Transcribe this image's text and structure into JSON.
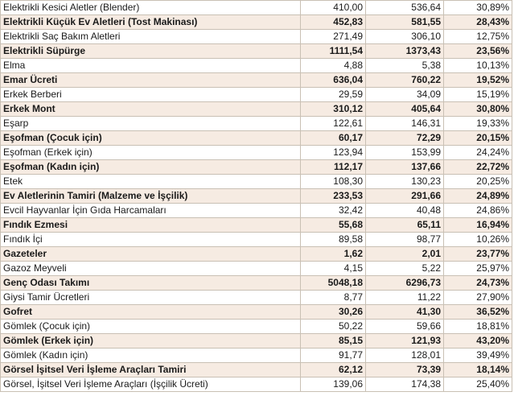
{
  "rows": [
    {
      "name": "Elektrikli Kesici Aletler (Blender)",
      "v1": "410,00",
      "v2": "536,64",
      "pct": "30,89%",
      "bold": false
    },
    {
      "name": "Elektrikli Küçük Ev Aletleri (Tost Makinası)",
      "v1": "452,83",
      "v2": "581,55",
      "pct": "28,43%",
      "bold": true
    },
    {
      "name": "Elektrikli Saç Bakım Aletleri",
      "v1": "271,49",
      "v2": "306,10",
      "pct": "12,75%",
      "bold": false
    },
    {
      "name": "Elektrikli Süpürge",
      "v1": "1111,54",
      "v2": "1373,43",
      "pct": "23,56%",
      "bold": true
    },
    {
      "name": "Elma",
      "v1": "4,88",
      "v2": "5,38",
      "pct": "10,13%",
      "bold": false
    },
    {
      "name": "Emar Ücreti",
      "v1": "636,04",
      "v2": "760,22",
      "pct": "19,52%",
      "bold": true
    },
    {
      "name": "Erkek Berberi",
      "v1": "29,59",
      "v2": "34,09",
      "pct": "15,19%",
      "bold": false
    },
    {
      "name": "Erkek Mont",
      "v1": "310,12",
      "v2": "405,64",
      "pct": "30,80%",
      "bold": true
    },
    {
      "name": "Eşarp",
      "v1": "122,61",
      "v2": "146,31",
      "pct": "19,33%",
      "bold": false
    },
    {
      "name": "Eşofman (Çocuk için)",
      "v1": "60,17",
      "v2": "72,29",
      "pct": "20,15%",
      "bold": true
    },
    {
      "name": "Eşofman (Erkek için)",
      "v1": "123,94",
      "v2": "153,99",
      "pct": "24,24%",
      "bold": false
    },
    {
      "name": "Eşofman (Kadın için)",
      "v1": "112,17",
      "v2": "137,66",
      "pct": "22,72%",
      "bold": true
    },
    {
      "name": "Etek",
      "v1": "108,30",
      "v2": "130,23",
      "pct": "20,25%",
      "bold": false
    },
    {
      "name": "Ev Aletlerinin Tamiri (Malzeme ve İşçilik)",
      "v1": "233,53",
      "v2": "291,66",
      "pct": "24,89%",
      "bold": true
    },
    {
      "name": "Evcil Hayvanlar İçin Gıda Harcamaları",
      "v1": "32,42",
      "v2": "40,48",
      "pct": "24,86%",
      "bold": false
    },
    {
      "name": "Fındık Ezmesi",
      "v1": "55,68",
      "v2": "65,11",
      "pct": "16,94%",
      "bold": true
    },
    {
      "name": "Fındık İçi",
      "v1": "89,58",
      "v2": "98,77",
      "pct": "10,26%",
      "bold": false
    },
    {
      "name": "Gazeteler",
      "v1": "1,62",
      "v2": "2,01",
      "pct": "23,77%",
      "bold": true
    },
    {
      "name": "Gazoz Meyveli",
      "v1": "4,15",
      "v2": "5,22",
      "pct": "25,97%",
      "bold": false
    },
    {
      "name": "Genç Odası Takımı",
      "v1": "5048,18",
      "v2": "6296,73",
      "pct": "24,73%",
      "bold": true
    },
    {
      "name": "Giysi Tamir Ücretleri",
      "v1": "8,77",
      "v2": "11,22",
      "pct": "27,90%",
      "bold": false
    },
    {
      "name": "Gofret",
      "v1": "30,26",
      "v2": "41,30",
      "pct": "36,52%",
      "bold": true
    },
    {
      "name": "Gömlek (Çocuk için)",
      "v1": "50,22",
      "v2": "59,66",
      "pct": "18,81%",
      "bold": false
    },
    {
      "name": "Gömlek (Erkek için)",
      "v1": "85,15",
      "v2": "121,93",
      "pct": "43,20%",
      "bold": true
    },
    {
      "name": "Gömlek (Kadın için)",
      "v1": "91,77",
      "v2": "128,01",
      "pct": "39,49%",
      "bold": false
    },
    {
      "name": "Görsel İşitsel Veri İşleme Araçları Tamiri",
      "v1": "62,12",
      "v2": "73,39",
      "pct": "18,14%",
      "bold": true
    },
    {
      "name": "Görsel, İşitsel Veri İşleme Araçları (İşçilik Ücreti)",
      "v1": "139,06",
      "v2": "174,38",
      "pct": "25,40%",
      "bold": false
    }
  ]
}
